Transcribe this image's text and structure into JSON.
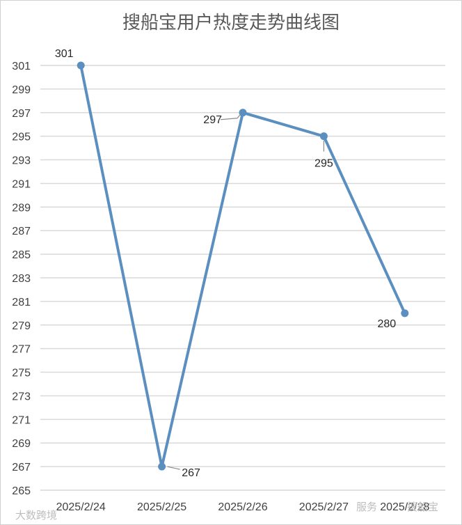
{
  "chart_data": {
    "type": "line",
    "title": "搜船宝用户热度走势曲线图",
    "categories": [
      "2025/2/24",
      "2025/2/25",
      "2025/2/26",
      "2025/2/27",
      "2025/2/28"
    ],
    "series": [
      {
        "values": [
          301,
          267,
          297,
          295,
          280
        ]
      }
    ],
    "data_labels": [
      "301",
      "267",
      "297",
      "295",
      "280"
    ],
    "ylim": [
      265,
      301
    ],
    "yticks": [
      265,
      267,
      269,
      271,
      273,
      275,
      277,
      279,
      281,
      283,
      285,
      287,
      289,
      291,
      293,
      295,
      297,
      299,
      301
    ],
    "grid": true,
    "legend": "none",
    "colors": {
      "line": "#5b8fbf",
      "grid": "#d9d9d9",
      "leader": "#8c8c8c"
    }
  },
  "watermarks": {
    "left_text": "大数跨境",
    "right_text": "服务",
    "right_brand": "搜船宝"
  }
}
